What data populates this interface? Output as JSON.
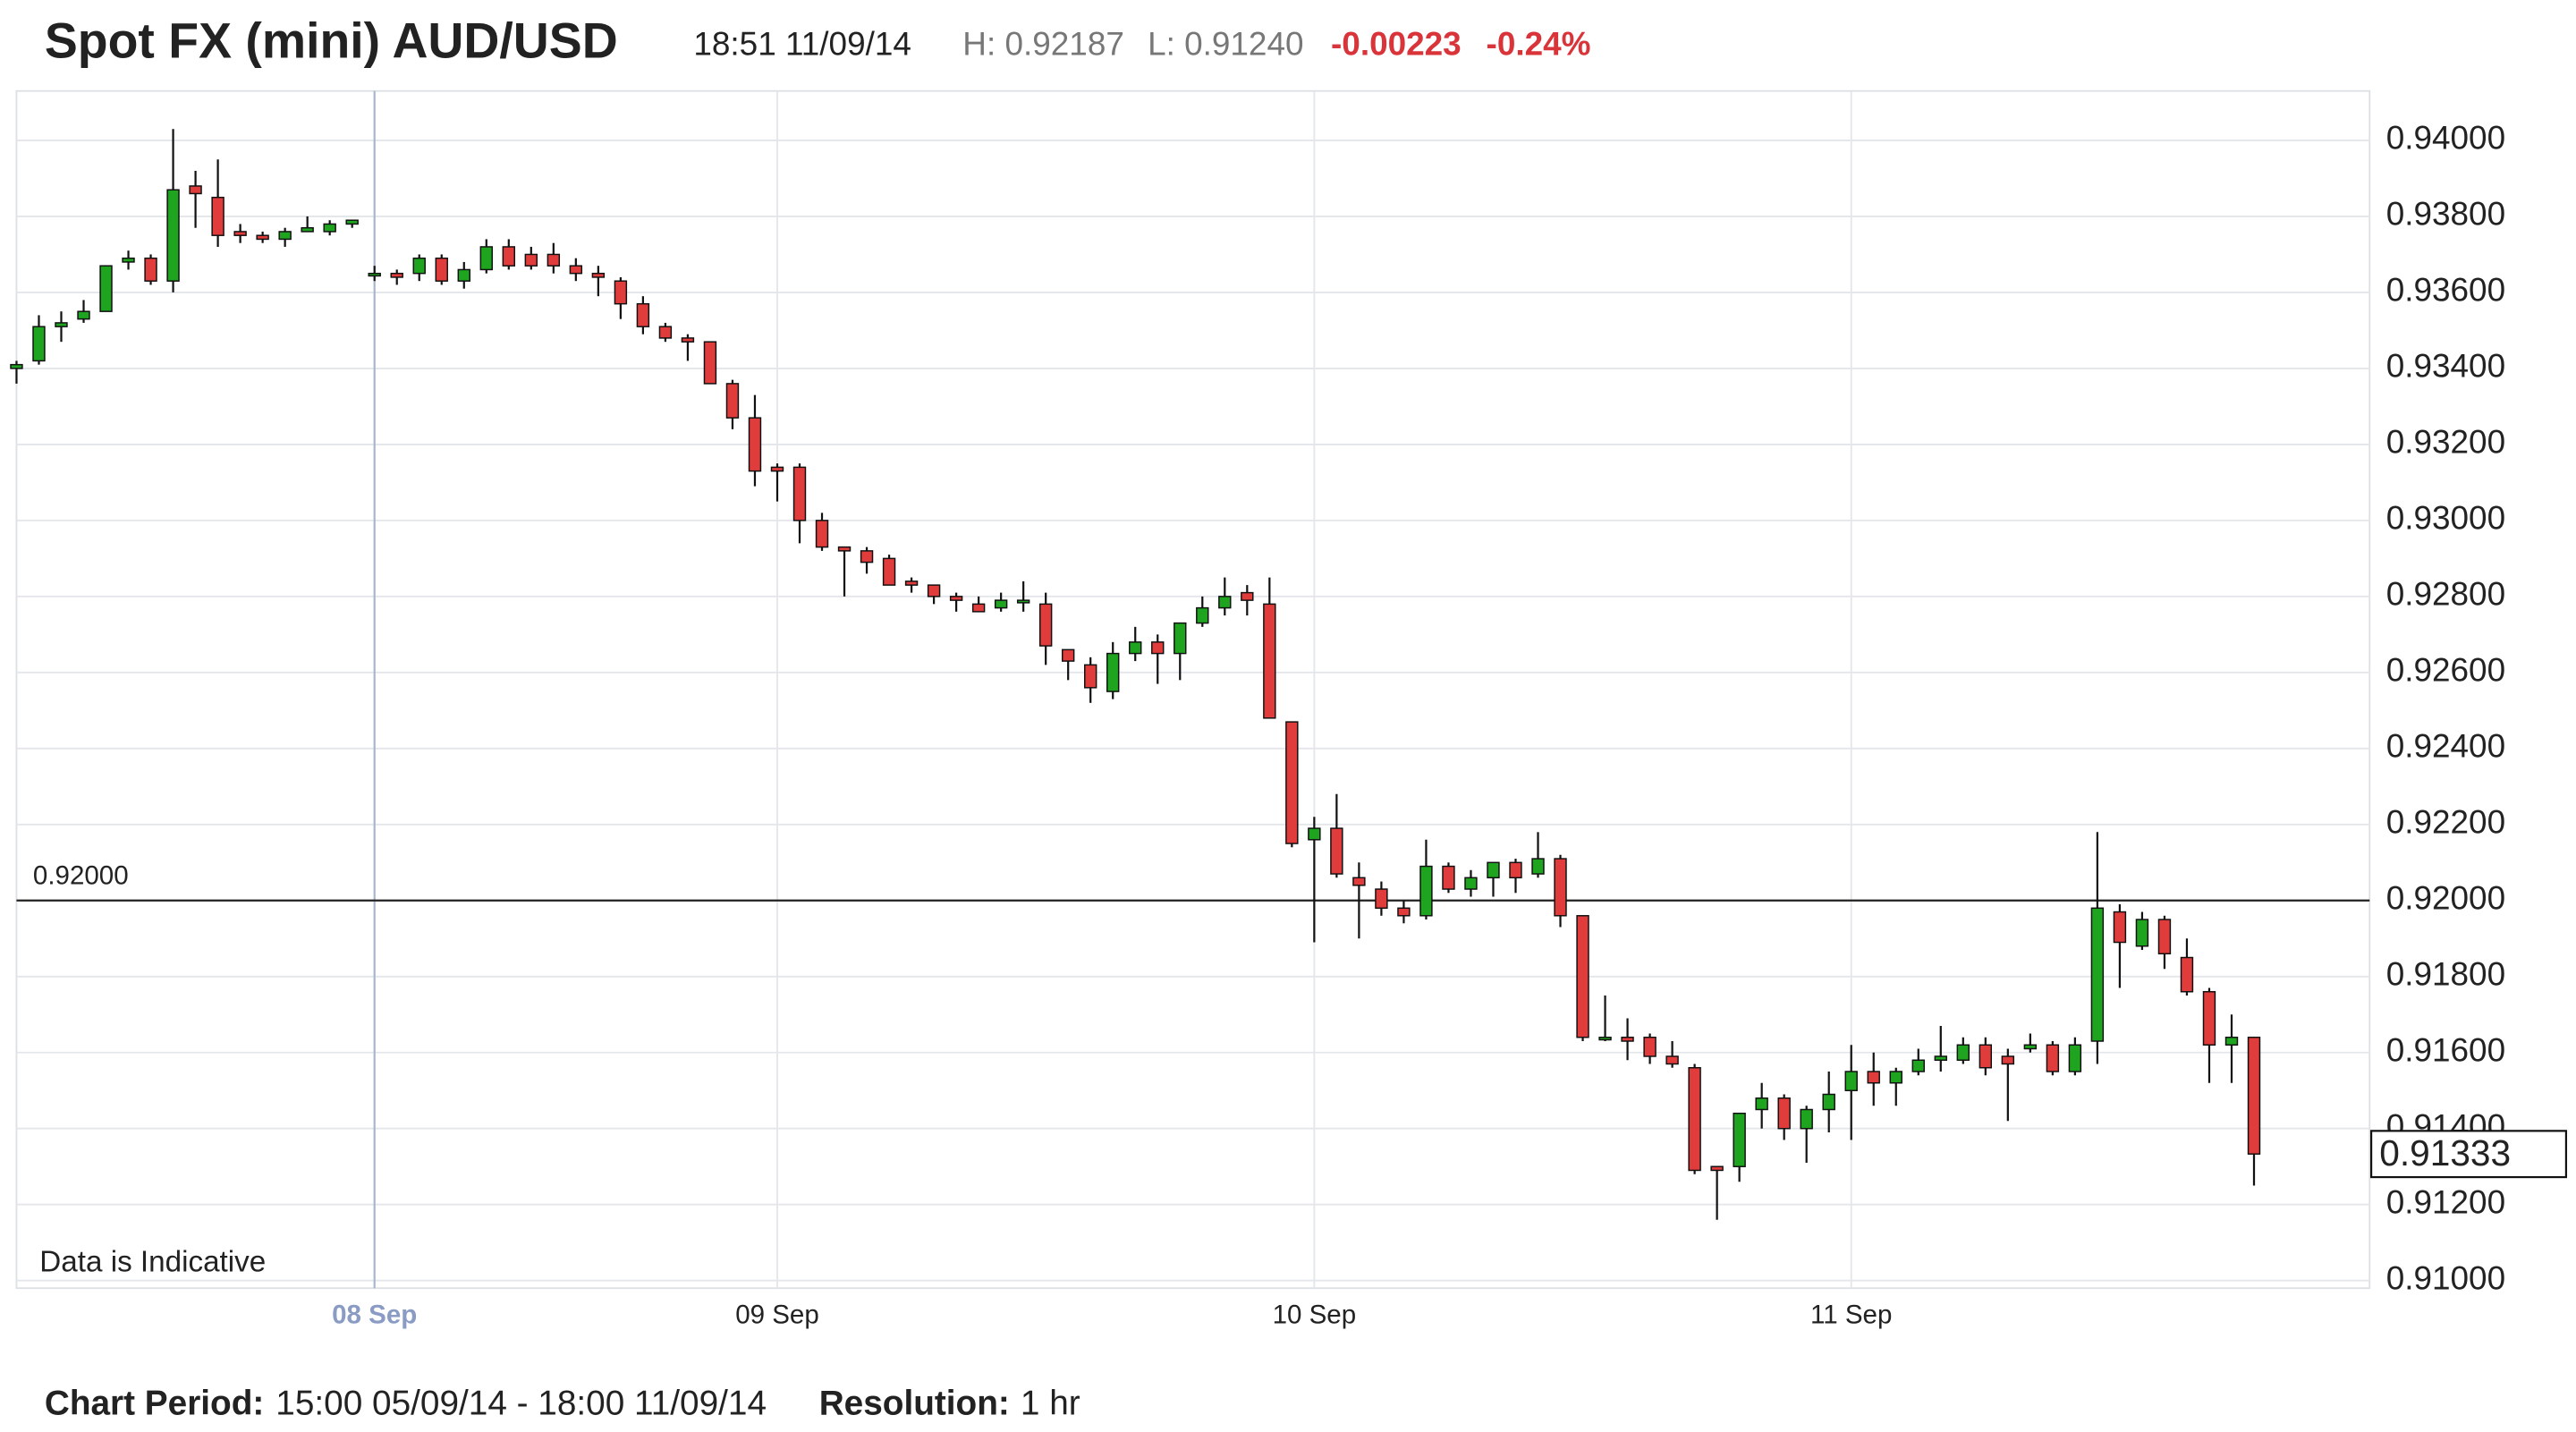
{
  "chart_data": {
    "type": "candlestick",
    "title": "Spot FX (mini) AUD/USD",
    "stats": {
      "time": "18:51 11/09/14",
      "high": "H: 0.92187",
      "low": "L: 0.91240",
      "change": "-0.00223",
      "change_pct": "-0.24%"
    },
    "annotation": "Data is Indicative",
    "footer": {
      "period_label": "Chart Period:",
      "period": "15:00 05/09/14 - 18:00 11/09/14",
      "resolution_label": "Resolution:",
      "resolution": "1 hr"
    },
    "up_color": "#1ea41e",
    "down_color": "#e03c3c",
    "grid": true,
    "crosshair": 16,
    "reference_line": {
      "value": 0.92,
      "label": "0.92000"
    },
    "last_price": {
      "value": 0.91333,
      "label": "0.91333"
    },
    "ylim": [
      0.9098,
      0.9413
    ],
    "yticks": [
      {
        "value": 0.91,
        "label": "0.91000"
      },
      {
        "value": 0.912,
        "label": "0.91200"
      },
      {
        "value": 0.914,
        "label": "0.91400"
      },
      {
        "value": 0.916,
        "label": "0.91600"
      },
      {
        "value": 0.918,
        "label": "0.91800"
      },
      {
        "value": 0.92,
        "label": "0.92000"
      },
      {
        "value": 0.922,
        "label": "0.92200"
      },
      {
        "value": 0.924,
        "label": "0.92400"
      },
      {
        "value": 0.926,
        "label": "0.92600"
      },
      {
        "value": 0.928,
        "label": "0.92800"
      },
      {
        "value": 0.93,
        "label": "0.93000"
      },
      {
        "value": 0.932,
        "label": "0.93200"
      },
      {
        "value": 0.934,
        "label": "0.93400"
      },
      {
        "value": 0.936,
        "label": "0.93600"
      },
      {
        "value": 0.938,
        "label": "0.93800"
      },
      {
        "value": 0.94,
        "label": "0.94000"
      }
    ],
    "categories": [
      null,
      null,
      null,
      null,
      null,
      null,
      null,
      null,
      null,
      null,
      null,
      null,
      null,
      null,
      null,
      null,
      "08 Sep",
      null,
      null,
      null,
      null,
      null,
      null,
      null,
      null,
      null,
      null,
      null,
      null,
      null,
      null,
      null,
      null,
      null,
      "09 Sep",
      null,
      null,
      null,
      null,
      null,
      null,
      null,
      null,
      null,
      null,
      null,
      null,
      null,
      null,
      null,
      null,
      null,
      null,
      null,
      null,
      null,
      null,
      null,
      "10 Sep",
      null,
      null,
      null,
      null,
      null,
      null,
      null,
      null,
      null,
      null,
      null,
      null,
      null,
      null,
      null,
      null,
      null,
      null,
      null,
      null,
      null,
      null,
      null,
      "11 Sep",
      null,
      null,
      null,
      null,
      null,
      null,
      null,
      null,
      null,
      null,
      null,
      null,
      null,
      null,
      null,
      null,
      null,
      null
    ],
    "ohlc": [
      [
        0.934,
        0.9342,
        0.9336,
        0.9341
      ],
      [
        0.9342,
        0.9354,
        0.9341,
        0.9351
      ],
      [
        0.9351,
        0.9355,
        0.9347,
        0.9352
      ],
      [
        0.9353,
        0.9358,
        0.9352,
        0.9355
      ],
      [
        0.9355,
        0.9367,
        0.9355,
        0.9367
      ],
      [
        0.9368,
        0.9371,
        0.9366,
        0.9369
      ],
      [
        0.9369,
        0.937,
        0.9362,
        0.9363
      ],
      [
        0.9363,
        0.9403,
        0.936,
        0.9387
      ],
      [
        0.9388,
        0.9392,
        0.9377,
        0.9386
      ],
      [
        0.9385,
        0.9395,
        0.9372,
        0.9375
      ],
      [
        0.9376,
        0.9378,
        0.9373,
        0.9375
      ],
      [
        0.9375,
        0.9376,
        0.9373,
        0.9374
      ],
      [
        0.9374,
        0.9377,
        0.9372,
        0.9376
      ],
      [
        0.9376,
        0.938,
        0.9376,
        0.9377
      ],
      [
        0.9376,
        0.9379,
        0.9375,
        0.9378
      ],
      [
        0.9378,
        0.9379,
        0.9377,
        0.9379
      ],
      [
        0.9365,
        0.9367,
        0.9363,
        0.9365
      ],
      [
        0.9365,
        0.9366,
        0.9362,
        0.9364
      ],
      [
        0.9365,
        0.937,
        0.9363,
        0.9369
      ],
      [
        0.9369,
        0.937,
        0.9362,
        0.9363
      ],
      [
        0.9363,
        0.9368,
        0.9361,
        0.9366
      ],
      [
        0.9366,
        0.9374,
        0.9365,
        0.9372
      ],
      [
        0.9372,
        0.9374,
        0.9366,
        0.9367
      ],
      [
        0.937,
        0.9372,
        0.9366,
        0.9367
      ],
      [
        0.937,
        0.9373,
        0.9365,
        0.9367
      ],
      [
        0.9367,
        0.9369,
        0.9363,
        0.9365
      ],
      [
        0.9365,
        0.9367,
        0.9359,
        0.9364
      ],
      [
        0.9363,
        0.9364,
        0.9353,
        0.9357
      ],
      [
        0.9357,
        0.9359,
        0.9349,
        0.9351
      ],
      [
        0.9351,
        0.9352,
        0.9347,
        0.9348
      ],
      [
        0.9348,
        0.9349,
        0.9342,
        0.9347
      ],
      [
        0.9347,
        0.9347,
        0.9336,
        0.9336
      ],
      [
        0.9336,
        0.9337,
        0.9324,
        0.9327
      ],
      [
        0.9327,
        0.9333,
        0.9309,
        0.9313
      ],
      [
        0.9314,
        0.9315,
        0.9305,
        0.9313
      ],
      [
        0.9314,
        0.9315,
        0.9294,
        0.93
      ],
      [
        0.93,
        0.9302,
        0.9292,
        0.9293
      ],
      [
        0.9293,
        0.9293,
        0.928,
        0.9292
      ],
      [
        0.9292,
        0.9293,
        0.9286,
        0.9289
      ],
      [
        0.929,
        0.9291,
        0.9283,
        0.9283
      ],
      [
        0.9284,
        0.9285,
        0.9281,
        0.9283
      ],
      [
        0.9283,
        0.9283,
        0.9278,
        0.928
      ],
      [
        0.928,
        0.9281,
        0.9276,
        0.9279
      ],
      [
        0.9278,
        0.928,
        0.9276,
        0.9276
      ],
      [
        0.9277,
        0.9281,
        0.9276,
        0.9279
      ],
      [
        0.9279,
        0.9284,
        0.9276,
        0.9279
      ],
      [
        0.9278,
        0.9281,
        0.9262,
        0.9267
      ],
      [
        0.9266,
        0.9266,
        0.9258,
        0.9263
      ],
      [
        0.9262,
        0.9264,
        0.9252,
        0.9256
      ],
      [
        0.9255,
        0.9268,
        0.9253,
        0.9265
      ],
      [
        0.9265,
        0.9272,
        0.9263,
        0.9268
      ],
      [
        0.9268,
        0.927,
        0.9257,
        0.9265
      ],
      [
        0.9265,
        0.9273,
        0.9258,
        0.9273
      ],
      [
        0.9273,
        0.928,
        0.9272,
        0.9277
      ],
      [
        0.9277,
        0.9285,
        0.9275,
        0.928
      ],
      [
        0.9281,
        0.9283,
        0.9275,
        0.9279
      ],
      [
        0.9278,
        0.9285,
        0.9248,
        0.9248
      ],
      [
        0.9247,
        0.9247,
        0.9214,
        0.9215
      ],
      [
        0.9216,
        0.9222,
        0.9189,
        0.9219
      ],
      [
        0.9219,
        0.9228,
        0.9206,
        0.9207
      ],
      [
        0.9206,
        0.921,
        0.919,
        0.9204
      ],
      [
        0.9203,
        0.9205,
        0.9196,
        0.9198
      ],
      [
        0.9198,
        0.92,
        0.9194,
        0.9196
      ],
      [
        0.9196,
        0.9216,
        0.9195,
        0.9209
      ],
      [
        0.9209,
        0.921,
        0.9202,
        0.9203
      ],
      [
        0.9203,
        0.9208,
        0.9201,
        0.9206
      ],
      [
        0.9206,
        0.921,
        0.9201,
        0.921
      ],
      [
        0.921,
        0.9211,
        0.9202,
        0.9206
      ],
      [
        0.9207,
        0.9218,
        0.9206,
        0.9211
      ],
      [
        0.9211,
        0.9212,
        0.9193,
        0.9196
      ],
      [
        0.9196,
        0.9196,
        0.9163,
        0.9164
      ],
      [
        0.9164,
        0.9175,
        0.9163,
        0.9164
      ],
      [
        0.9164,
        0.9169,
        0.9158,
        0.9163
      ],
      [
        0.9164,
        0.9165,
        0.9157,
        0.9159
      ],
      [
        0.9159,
        0.9163,
        0.9156,
        0.9157
      ],
      [
        0.9156,
        0.9157,
        0.9128,
        0.9129
      ],
      [
        0.913,
        0.913,
        0.9116,
        0.9129
      ],
      [
        0.913,
        0.9144,
        0.9126,
        0.9144
      ],
      [
        0.9145,
        0.9152,
        0.914,
        0.9148
      ],
      [
        0.9148,
        0.9149,
        0.9137,
        0.914
      ],
      [
        0.914,
        0.9146,
        0.9131,
        0.9145
      ],
      [
        0.9145,
        0.9155,
        0.9139,
        0.9149
      ],
      [
        0.915,
        0.9162,
        0.9137,
        0.9155
      ],
      [
        0.9155,
        0.916,
        0.9146,
        0.9152
      ],
      [
        0.9152,
        0.9156,
        0.9146,
        0.9155
      ],
      [
        0.9155,
        0.9161,
        0.9154,
        0.9158
      ],
      [
        0.9158,
        0.9167,
        0.9155,
        0.9159
      ],
      [
        0.9158,
        0.9164,
        0.9157,
        0.9162
      ],
      [
        0.9162,
        0.9164,
        0.9154,
        0.9156
      ],
      [
        0.9159,
        0.9161,
        0.9142,
        0.9157
      ],
      [
        0.9161,
        0.9165,
        0.916,
        0.9162
      ],
      [
        0.9162,
        0.9163,
        0.9154,
        0.9155
      ],
      [
        0.9155,
        0.9164,
        0.9154,
        0.9162
      ],
      [
        0.9163,
        0.9218,
        0.9157,
        0.9198
      ],
      [
        0.9197,
        0.9199,
        0.9177,
        0.9189
      ],
      [
        0.9188,
        0.9197,
        0.9187,
        0.9195
      ],
      [
        0.9195,
        0.9196,
        0.9182,
        0.9186
      ],
      [
        0.9185,
        0.919,
        0.9175,
        0.9176
      ],
      [
        0.9176,
        0.9177,
        0.9152,
        0.9162
      ],
      [
        0.9162,
        0.917,
        0.9152,
        0.9164
      ],
      [
        0.9164,
        0.9164,
        0.9125,
        0.91333
      ]
    ]
  }
}
